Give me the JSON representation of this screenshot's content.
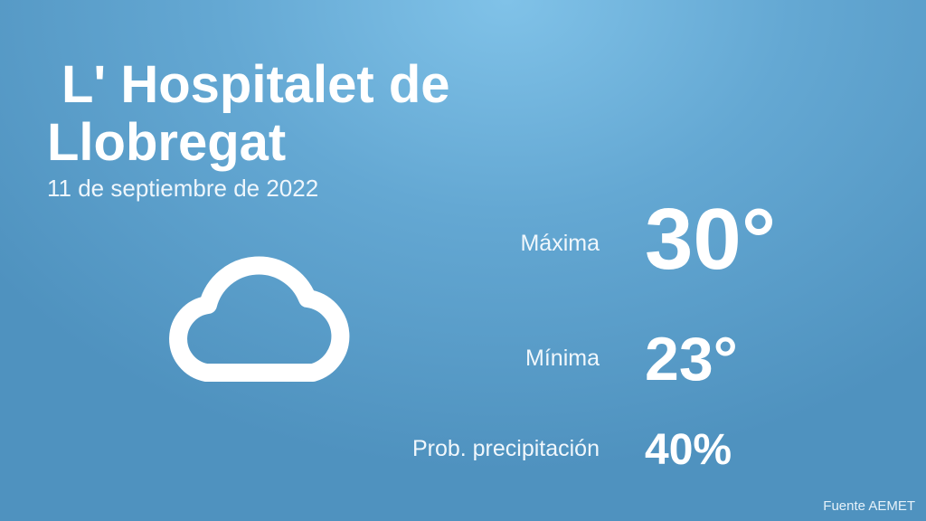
{
  "header": {
    "title": "L' Hospitalet de Llobregat",
    "date": "11 de septiembre de 2022"
  },
  "forecast": {
    "max": {
      "label": "Máxima",
      "value": "30°"
    },
    "min": {
      "label": "Mínima",
      "value": "23°"
    },
    "precipitation": {
      "label": "Prob. precipitación",
      "value": "40%"
    }
  },
  "footer": {
    "source": "Fuente AEMET"
  }
}
